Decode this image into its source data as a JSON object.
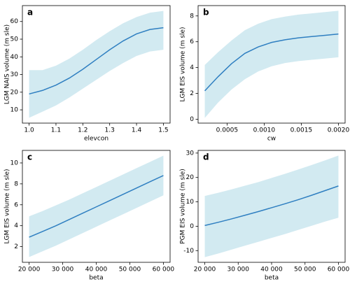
{
  "chart_data": [
    {
      "type": "line",
      "letter": "a",
      "xlabel": "elevcon",
      "ylabel": "LGM NAIS volume (m sle)",
      "x": [
        1.0,
        1.05,
        1.1,
        1.15,
        1.2,
        1.25,
        1.3,
        1.35,
        1.4,
        1.45,
        1.5
      ],
      "values": [
        19,
        21,
        24,
        28,
        33,
        38.5,
        44,
        49,
        53,
        55.5,
        56.5
      ],
      "band_lower": [
        5.5,
        9,
        12.5,
        17,
        22,
        27,
        32,
        36.5,
        40.5,
        43,
        44
      ],
      "band_upper": [
        32.5,
        32.5,
        35,
        39,
        44,
        49.5,
        54.5,
        59,
        62.5,
        65,
        66
      ],
      "color": "#2f7fc1",
      "band_color": "#add8e6",
      "xlim": [
        0.975,
        1.525
      ],
      "ylim": [
        2.5,
        69
      ],
      "xticks": [
        {
          "value": 1.0,
          "label": "1.0"
        },
        {
          "value": 1.1,
          "label": "1.1"
        },
        {
          "value": 1.2,
          "label": "1.2"
        },
        {
          "value": 1.3,
          "label": "1.3"
        },
        {
          "value": 1.4,
          "label": "1.4"
        },
        {
          "value": 1.5,
          "label": "1.5"
        }
      ],
      "yticks": [
        10,
        20,
        30,
        40,
        50,
        60
      ]
    },
    {
      "type": "line",
      "letter": "b",
      "xlabel": "cw",
      "ylabel": "LGM EIS volume (m sle)",
      "x": [
        0.0002,
        0.00038,
        0.00056,
        0.00074,
        0.00092,
        0.0011,
        0.00128,
        0.00146,
        0.00164,
        0.00182,
        0.002
      ],
      "values": [
        2.2,
        3.3,
        4.3,
        5.1,
        5.6,
        5.95,
        6.15,
        6.3,
        6.4,
        6.5,
        6.6
      ],
      "band_lower": [
        0.1,
        1.3,
        2.3,
        3.1,
        3.7,
        4.1,
        4.35,
        4.5,
        4.6,
        4.7,
        4.8
      ],
      "band_upper": [
        4.2,
        5.2,
        6.1,
        6.9,
        7.4,
        7.75,
        7.95,
        8.1,
        8.2,
        8.3,
        8.4
      ],
      "color": "#2f7fc1",
      "band_color": "#add8e6",
      "xlim": [
        0.00011,
        0.00209
      ],
      "ylim": [
        -0.3,
        8.8
      ],
      "xticks": [
        0.0005,
        0.001,
        0.0015,
        0.002
      ],
      "xtick_labels": [
        "0.0005",
        "0.0010",
        "0.0015",
        "0.0020"
      ],
      "yticks": [
        0,
        2,
        4,
        6,
        8
      ]
    },
    {
      "type": "line",
      "letter": "c",
      "xlabel": "beta",
      "ylabel": "LGM EIS volume (m sle)",
      "x": [
        20000,
        24000,
        28000,
        32000,
        36000,
        40000,
        44000,
        48000,
        52000,
        56000,
        60000
      ],
      "values": [
        2.9,
        3.45,
        4.0,
        4.6,
        5.2,
        5.8,
        6.4,
        7.0,
        7.6,
        8.2,
        8.8
      ],
      "band_lower": [
        1.0,
        1.55,
        2.1,
        2.7,
        3.3,
        3.9,
        4.5,
        5.1,
        5.7,
        6.3,
        6.9
      ],
      "band_upper": [
        4.9,
        5.4,
        5.95,
        6.5,
        7.1,
        7.7,
        8.3,
        8.9,
        9.5,
        10.1,
        10.7
      ],
      "color": "#2f7fc1",
      "band_color": "#add8e6",
      "xlim": [
        18000,
        62000
      ],
      "ylim": [
        0.5,
        11.2
      ],
      "xticks": [
        {
          "value": 20000,
          "label": "20 000"
        },
        {
          "value": 30000,
          "label": "30 000"
        },
        {
          "value": 40000,
          "label": "40 000"
        },
        {
          "value": 50000,
          "label": "50 000"
        },
        {
          "value": 60000,
          "label": "60 000"
        }
      ],
      "yticks": [
        2,
        4,
        6,
        8,
        10
      ]
    },
    {
      "type": "line",
      "letter": "d",
      "xlabel": "beta",
      "ylabel": "PGM EIS volume (m sle)",
      "x": [
        20000,
        24000,
        28000,
        32000,
        36000,
        40000,
        44000,
        48000,
        52000,
        56000,
        60000
      ],
      "values": [
        0.3,
        1.6,
        3.0,
        4.5,
        6.0,
        7.6,
        9.2,
        10.9,
        12.7,
        14.6,
        16.5
      ],
      "band_lower": [
        -12.7,
        -11.2,
        -9.6,
        -8.0,
        -6.4,
        -4.8,
        -3.2,
        -1.5,
        0.2,
        1.9,
        3.5
      ],
      "band_upper": [
        12.4,
        13.7,
        15.1,
        16.6,
        18.1,
        19.8,
        21.5,
        23.3,
        25.1,
        27.0,
        29.0
      ],
      "color": "#2f7fc1",
      "band_color": "#add8e6",
      "xlim": [
        18000,
        62000
      ],
      "ylim": [
        -14.8,
        31.1
      ],
      "xticks": [
        {
          "value": 20000,
          "label": "20 000"
        },
        {
          "value": 30000,
          "label": "30 000"
        },
        {
          "value": 40000,
          "label": "40 000"
        },
        {
          "value": 50000,
          "label": "50 000"
        },
        {
          "value": 60000,
          "label": "60 000"
        }
      ],
      "yticks": [
        -10,
        0,
        10,
        20,
        30
      ]
    }
  ]
}
